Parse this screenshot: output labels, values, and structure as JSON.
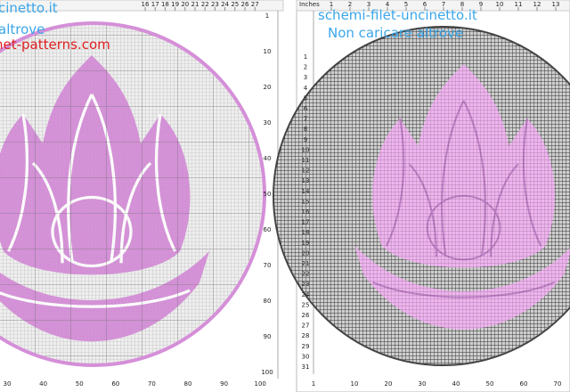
{
  "left_panel": {
    "watermark": [
      "cinetto.it",
      "altrove",
      "net-patterns.com"
    ],
    "top_ruler": [
      "16",
      "17",
      "18",
      "19",
      "20",
      "21",
      "22",
      "23",
      "24",
      "25",
      "26",
      "27"
    ],
    "right_axis": [
      "1",
      "10",
      "20",
      "30",
      "40",
      "50",
      "60",
      "70",
      "80",
      "90",
      "100"
    ],
    "bottom_axis": [
      "30",
      "40",
      "50",
      "60",
      "70",
      "80",
      "90",
      "100"
    ]
  },
  "right_panel": {
    "unit_label": "Inches",
    "watermark": [
      "schemi-filet-uncinetto.it",
      "Non caricare altrove"
    ],
    "top_ruler": [
      "1",
      "2",
      "3",
      "4",
      "5",
      "6",
      "7",
      "8",
      "9",
      "10",
      "11",
      "12",
      "13"
    ],
    "left_axis": [
      "1",
      "2",
      "3",
      "4",
      "5",
      "6",
      "7",
      "8",
      "9",
      "10",
      "11",
      "12",
      "13",
      "14",
      "15",
      "16",
      "17",
      "18",
      "19",
      "20",
      "21",
      "22",
      "23",
      "24",
      "25",
      "26",
      "27",
      "28",
      "29",
      "30",
      "31"
    ],
    "bottom_axis": [
      "1",
      "10",
      "20",
      "30",
      "40",
      "50",
      "60",
      "70"
    ]
  }
}
